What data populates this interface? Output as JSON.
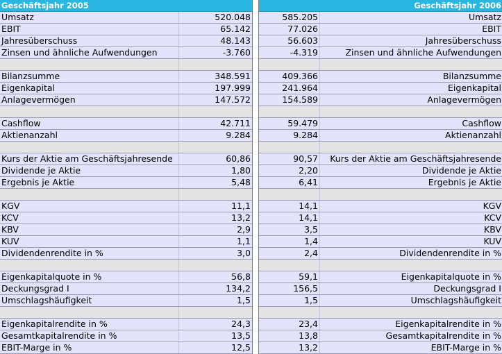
{
  "header": {
    "left_title": "Geschäftsjahr 2005",
    "right_title": "Geschäftsjahr 2006"
  },
  "rows": [
    {
      "type": "data",
      "label": "Umsatz",
      "v2005": "520.048",
      "v2006": "585.205"
    },
    {
      "type": "data",
      "label": "EBIT",
      "v2005": "65.142",
      "v2006": "77.026"
    },
    {
      "type": "data",
      "label": "Jahresüberschuss",
      "v2005": "48.143",
      "v2006": "56.603"
    },
    {
      "type": "data",
      "label": "Zinsen und ähnliche Aufwendungen",
      "v2005": "-3.760",
      "v2006": "-4.319"
    },
    {
      "type": "sep"
    },
    {
      "type": "data",
      "label": "Bilanzsumme",
      "v2005": "348.591",
      "v2006": "409.366"
    },
    {
      "type": "data",
      "label": "Eigenkapital",
      "v2005": "197.999",
      "v2006": "241.964"
    },
    {
      "type": "data",
      "label": "Anlagevermögen",
      "v2005": "147.572",
      "v2006": "154.589"
    },
    {
      "type": "sep"
    },
    {
      "type": "data",
      "label": "Cashflow",
      "v2005": "42.711",
      "v2006": "59.479"
    },
    {
      "type": "data",
      "label": "Aktienanzahl",
      "v2005": "9.284",
      "v2006": "9.284"
    },
    {
      "type": "sep"
    },
    {
      "type": "data",
      "label": "Kurs der Aktie am Geschäftsjahresende",
      "v2005": "60,86",
      "v2006": "90,57"
    },
    {
      "type": "data",
      "label": "Dividende je Aktie",
      "v2005": "1,80",
      "v2006": "2,20"
    },
    {
      "type": "data",
      "label": "Ergebnis je Aktie",
      "v2005": "5,48",
      "v2006": "6,41"
    },
    {
      "type": "sep"
    },
    {
      "type": "data",
      "label": "KGV",
      "v2005": "11,1",
      "v2006": "14,1"
    },
    {
      "type": "data",
      "label": "KCV",
      "v2005": "13,2",
      "v2006": "14,1"
    },
    {
      "type": "data",
      "label": "KBV",
      "v2005": "2,9",
      "v2006": "3,5"
    },
    {
      "type": "data",
      "label": "KUV",
      "v2005": "1,1",
      "v2006": "1,4"
    },
    {
      "type": "data",
      "label": "Dividendenrendite in %",
      "v2005": "3,0",
      "v2006": "2,4"
    },
    {
      "type": "sep"
    },
    {
      "type": "data",
      "label": "Eigenkapitalquote in %",
      "v2005": "56,8",
      "v2006": "59,1"
    },
    {
      "type": "data",
      "label": "Deckungsgrad I",
      "v2005": "134,2",
      "v2006": "156,5"
    },
    {
      "type": "data",
      "label": "Umschlagshäufigkeit",
      "v2005": "1,5",
      "v2006": "1,5"
    },
    {
      "type": "sep"
    },
    {
      "type": "data",
      "label": "Eigenkapitalrendite in %",
      "v2005": "24,3",
      "v2006": "23,4"
    },
    {
      "type": "data",
      "label": "Gesamtkapitalrendite in %",
      "v2005": "13,5",
      "v2006": "13,8"
    },
    {
      "type": "data",
      "label": "EBIT-Marge in %",
      "v2005": "12,5",
      "v2006": "13,2"
    }
  ]
}
